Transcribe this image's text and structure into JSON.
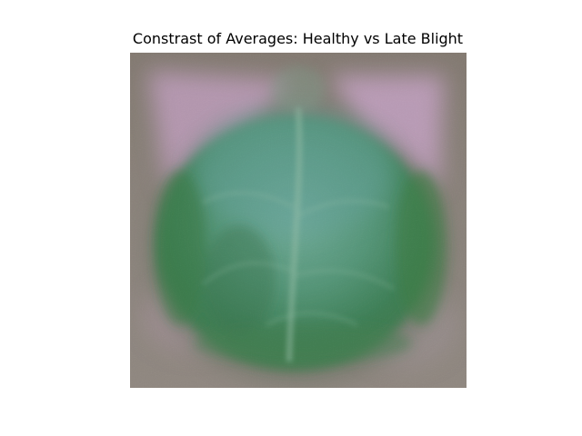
{
  "figure": {
    "title": "Constrast of Averages: Healthy vs Late Blight"
  },
  "image": {
    "subject": "average-leaf-image",
    "colors": {
      "background": "#8c8279",
      "corner_pink": "#c8a6c8",
      "leaf_dark_green": "#2f7a4a",
      "leaf_mid_green": "#4f9a6a",
      "leaf_teal": "#5aa39a",
      "leaf_light": "#8fc0a6"
    }
  }
}
